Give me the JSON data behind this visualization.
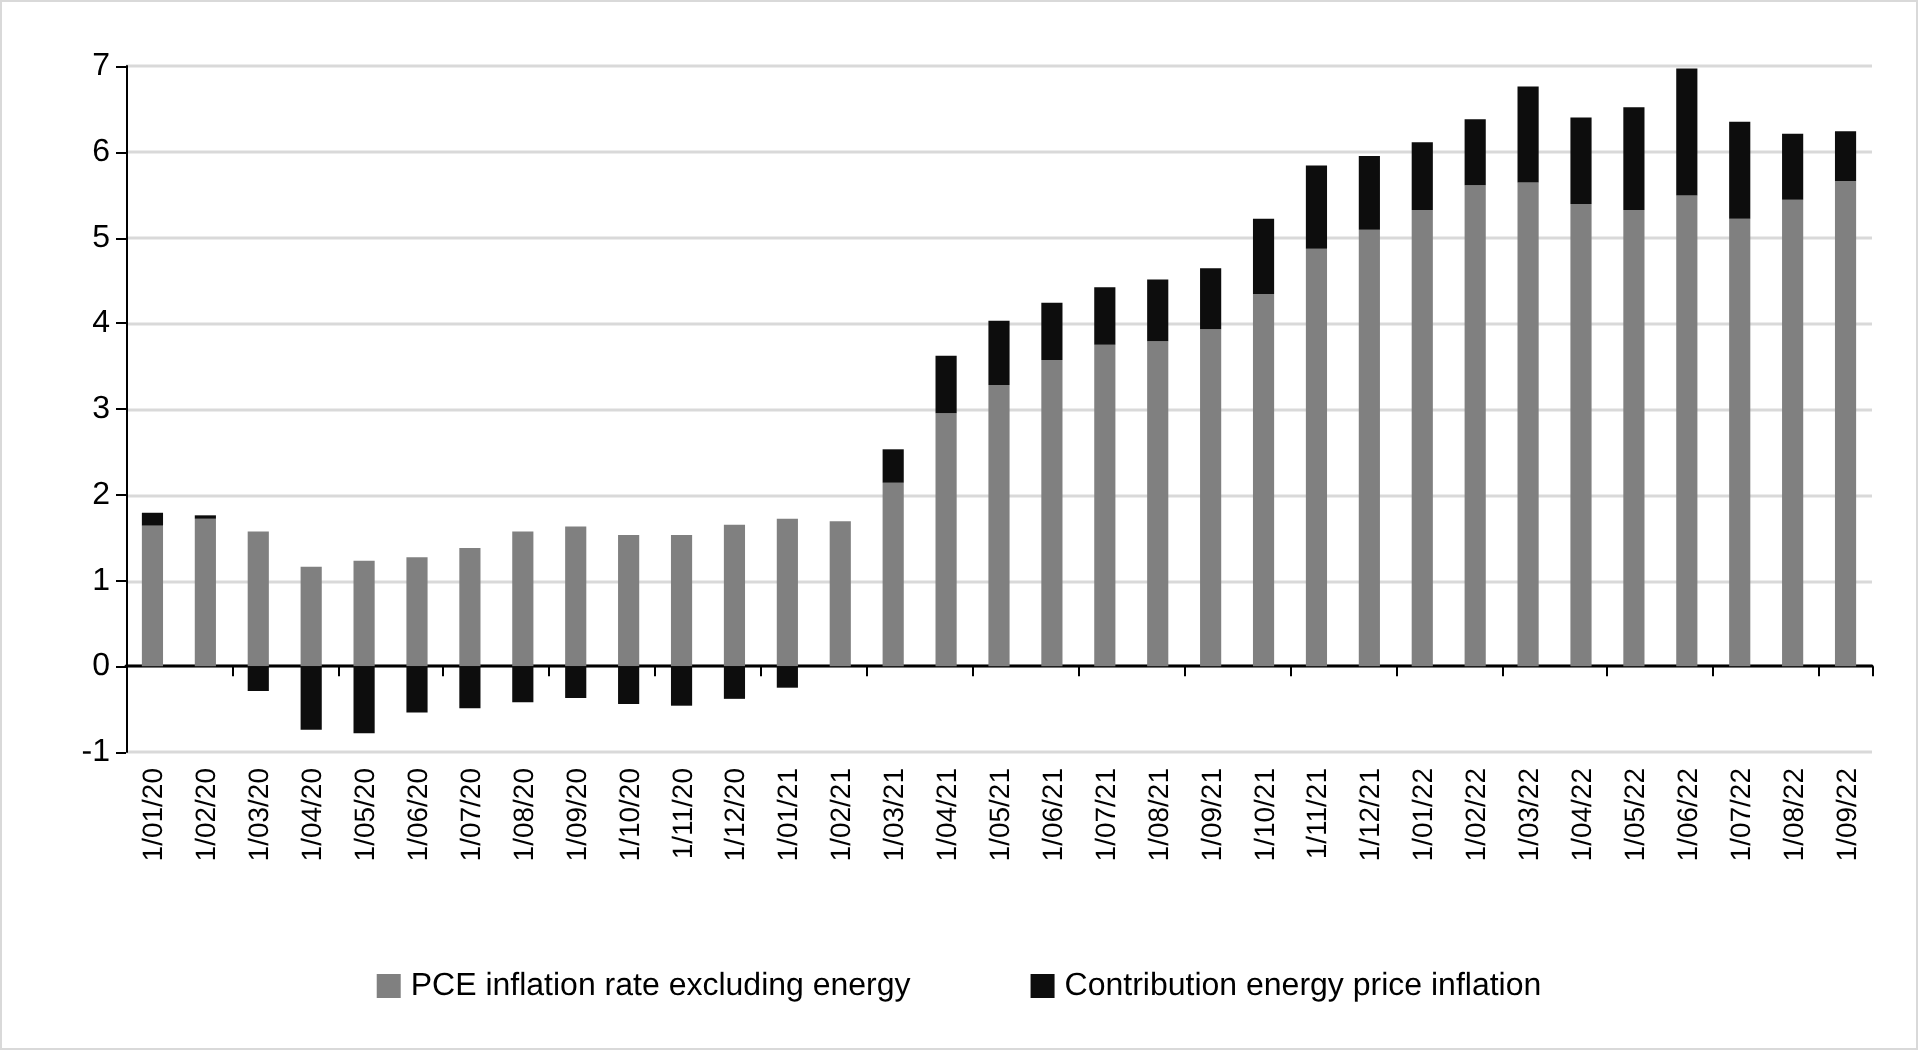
{
  "chart_data": {
    "type": "bar",
    "stacked": true,
    "categories": [
      "1/01/20",
      "1/02/20",
      "1/03/20",
      "1/04/20",
      "1/05/20",
      "1/06/20",
      "1/07/20",
      "1/08/20",
      "1/09/20",
      "1/10/20",
      "1/11/20",
      "1/12/20",
      "1/01/21",
      "1/02/21",
      "1/03/21",
      "1/04/21",
      "1/05/21",
      "1/06/21",
      "1/07/21",
      "1/08/21",
      "1/09/21",
      "1/10/21",
      "1/11/21",
      "1/12/21",
      "1/01/22",
      "1/02/22",
      "1/03/22",
      "1/04/22",
      "1/05/22",
      "1/06/22",
      "1/07/22",
      "1/08/22",
      "1/09/22"
    ],
    "series": [
      {
        "name": "PCE inflation rate excluding energy",
        "color": "#808080",
        "values": [
          1.64,
          1.72,
          1.57,
          1.16,
          1.23,
          1.27,
          1.38,
          1.57,
          1.63,
          1.53,
          1.53,
          1.65,
          1.72,
          1.69,
          2.14,
          2.95,
          3.28,
          3.57,
          3.75,
          3.79,
          3.93,
          4.34,
          4.87,
          5.09,
          5.32,
          5.61,
          5.64,
          5.39,
          5.32,
          5.49,
          5.22,
          5.44,
          5.66
        ]
      },
      {
        "name": "Contribution energy price inflation",
        "color": "#0d0d0d",
        "values": [
          0.15,
          0.04,
          -0.29,
          -0.74,
          -0.78,
          -0.54,
          -0.49,
          -0.42,
          -0.37,
          -0.44,
          -0.46,
          -0.38,
          -0.25,
          0,
          0.39,
          0.67,
          0.75,
          0.67,
          0.67,
          0.72,
          0.71,
          0.88,
          0.97,
          0.86,
          0.79,
          0.77,
          1.12,
          1.01,
          1.2,
          1.48,
          1.13,
          0.77,
          0.58
        ]
      }
    ],
    "ylim": [
      -1,
      7
    ],
    "yticks": [
      -1,
      0,
      1,
      2,
      3,
      4,
      5,
      6,
      7
    ],
    "grid": "y",
    "legend": "bottom"
  }
}
